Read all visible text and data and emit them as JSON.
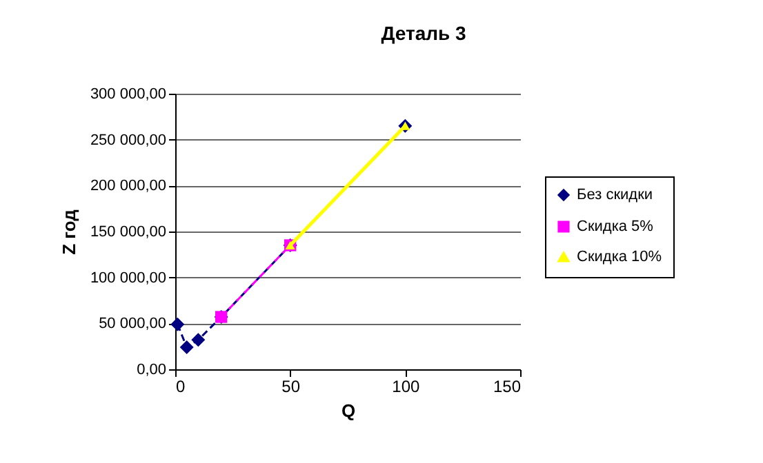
{
  "chart_data": {
    "type": "line",
    "title": "Деталь 3",
    "xlabel": "Q",
    "ylabel": "Z год",
    "series": [
      {
        "name": "Без скидки",
        "color": "#000080",
        "x": [
          1,
          5,
          10,
          20,
          50,
          100
        ],
        "values": [
          49000,
          24000,
          32000,
          57000,
          135000,
          265000
        ],
        "marker": "diamond",
        "line_style": "dashed"
      },
      {
        "name": "Скидка 5%",
        "color": "#ff00ff",
        "x": [
          20,
          50
        ],
        "values": [
          57000,
          135000
        ],
        "marker": "square",
        "line_style": "dashed"
      },
      {
        "name": "Скидка 10%",
        "color": "#ffff00",
        "x": [
          50,
          100
        ],
        "values": [
          135000,
          265000
        ],
        "marker": "triangle",
        "line_style": "solid"
      }
    ],
    "xlim": [
      0,
      150
    ],
    "xticks": [
      0,
      50,
      100,
      150
    ],
    "ylim": [
      0,
      300000
    ],
    "yticks": [
      {
        "value": 0,
        "label": "0,00"
      },
      {
        "value": 50000,
        "label": "50 000,00"
      },
      {
        "value": 100000,
        "label": "100 000,00"
      },
      {
        "value": 150000,
        "label": "150 000,00"
      },
      {
        "value": 200000,
        "label": "200 000,00"
      },
      {
        "value": 250000,
        "label": "250 000,00"
      },
      {
        "value": 300000,
        "label": "300 000,00"
      }
    ],
    "grid": "y",
    "legend": "right"
  }
}
